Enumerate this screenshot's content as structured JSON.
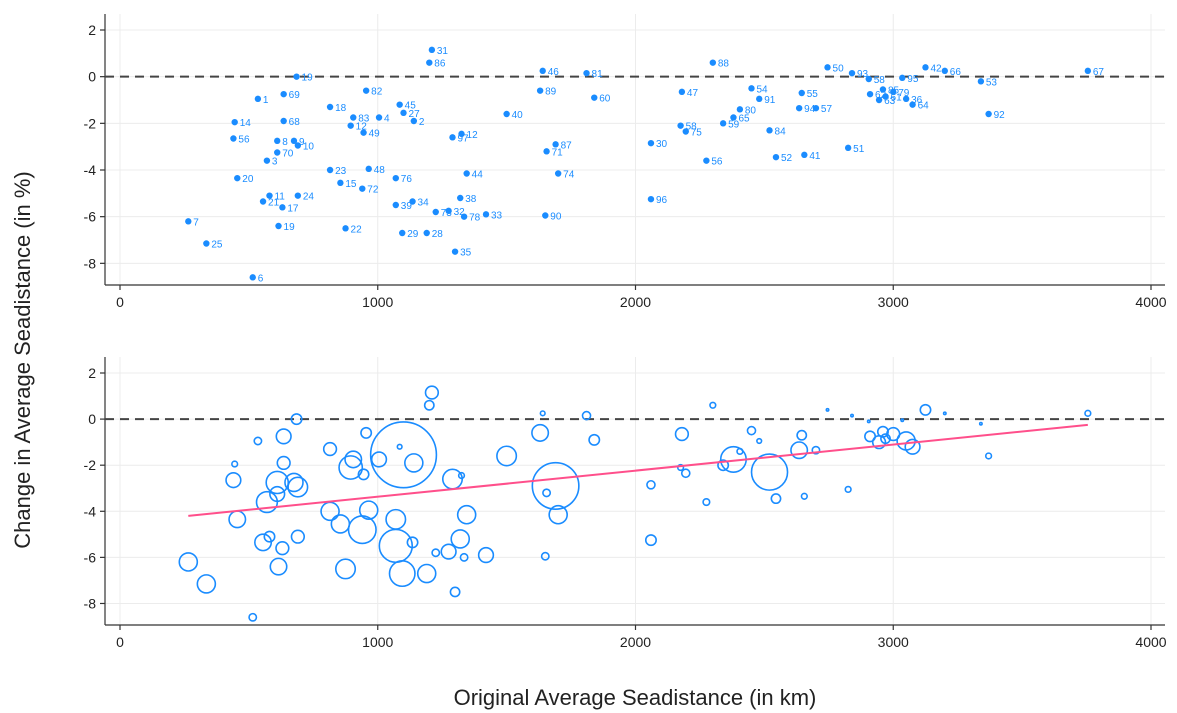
{
  "figure": {
    "ylabel": "Change in Average Seadistance (in %)",
    "xlabel": "Original Average Seadistance (in km)",
    "point_color": "#1a8cff",
    "fit_color": "#ff4f8b",
    "refline_color": "#444444"
  },
  "chart_data": [
    {
      "type": "scatter",
      "title": "",
      "xlim": [
        0,
        4000
      ],
      "ylim": [
        -8.5,
        2
      ],
      "xticks": [
        0,
        1000,
        2000,
        3000,
        4000
      ],
      "yticks": [
        2,
        0,
        -2,
        -4,
        -6,
        -8
      ],
      "reference_line_y": 0,
      "grid": true,
      "legend": "none",
      "points": [
        {
          "label": "7",
          "x": 265,
          "y": -6.2
        },
        {
          "label": "25",
          "x": 335,
          "y": -7.15
        },
        {
          "label": "6",
          "x": 515,
          "y": -8.6
        },
        {
          "label": "14",
          "x": 445,
          "y": -1.95
        },
        {
          "label": "56",
          "x": 440,
          "y": -2.65
        },
        {
          "label": "20",
          "x": 455,
          "y": -4.35
        },
        {
          "label": "1",
          "x": 535,
          "y": -0.95
        },
        {
          "label": "69",
          "x": 635,
          "y": -0.75
        },
        {
          "label": "19",
          "x": 685,
          "y": 0.0
        },
        {
          "label": "68",
          "x": 635,
          "y": -1.9
        },
        {
          "label": "8",
          "x": 610,
          "y": -2.75
        },
        {
          "label": "9",
          "x": 675,
          "y": -2.75
        },
        {
          "label": "10",
          "x": 690,
          "y": -2.95
        },
        {
          "label": "70",
          "x": 610,
          "y": -3.25
        },
        {
          "label": "3",
          "x": 570,
          "y": -3.6
        },
        {
          "label": "11",
          "x": 580,
          "y": -5.1
        },
        {
          "label": "21",
          "x": 555,
          "y": -5.35
        },
        {
          "label": "17",
          "x": 630,
          "y": -5.6
        },
        {
          "label": "24",
          "x": 690,
          "y": -5.1
        },
        {
          "label": "19",
          "x": 615,
          "y": -6.4
        },
        {
          "label": "18",
          "x": 815,
          "y": -1.3
        },
        {
          "label": "82",
          "x": 955,
          "y": -0.6
        },
        {
          "label": "83",
          "x": 905,
          "y": -1.75
        },
        {
          "label": "4",
          "x": 1005,
          "y": -1.75
        },
        {
          "label": "45",
          "x": 1085,
          "y": -1.2
        },
        {
          "label": "27",
          "x": 1100,
          "y": -1.55
        },
        {
          "label": "2",
          "x": 1140,
          "y": -1.9
        },
        {
          "label": "12",
          "x": 895,
          "y": -2.1
        },
        {
          "label": "49",
          "x": 945,
          "y": -2.4
        },
        {
          "label": "23",
          "x": 815,
          "y": -4.0
        },
        {
          "label": "48",
          "x": 965,
          "y": -3.95
        },
        {
          "label": "76",
          "x": 1070,
          "y": -4.35
        },
        {
          "label": "15",
          "x": 855,
          "y": -4.55
        },
        {
          "label": "72",
          "x": 940,
          "y": -4.8
        },
        {
          "label": "39",
          "x": 1070,
          "y": -5.5
        },
        {
          "label": "34",
          "x": 1135,
          "y": -5.35
        },
        {
          "label": "22",
          "x": 875,
          "y": -6.5
        },
        {
          "label": "29",
          "x": 1095,
          "y": -6.7
        },
        {
          "label": "28",
          "x": 1190,
          "y": -6.7
        },
        {
          "label": "31",
          "x": 1210,
          "y": 1.15
        },
        {
          "label": "86",
          "x": 1200,
          "y": 0.6
        },
        {
          "label": "97",
          "x": 1290,
          "y": -2.6
        },
        {
          "label": "12",
          "x": 1325,
          "y": -2.45
        },
        {
          "label": "44",
          "x": 1345,
          "y": -4.15
        },
        {
          "label": "38",
          "x": 1320,
          "y": -5.2
        },
        {
          "label": "32",
          "x": 1275,
          "y": -5.75
        },
        {
          "label": "73",
          "x": 1225,
          "y": -5.8
        },
        {
          "label": "78",
          "x": 1335,
          "y": -6.0
        },
        {
          "label": "33",
          "x": 1420,
          "y": -5.9
        },
        {
          "label": "35",
          "x": 1300,
          "y": -7.5
        },
        {
          "label": "40",
          "x": 1500,
          "y": -1.6
        },
        {
          "label": "46",
          "x": 1640,
          "y": 0.25
        },
        {
          "label": "89",
          "x": 1630,
          "y": -0.6
        },
        {
          "label": "81",
          "x": 1810,
          "y": 0.15
        },
        {
          "label": "60",
          "x": 1840,
          "y": -0.9
        },
        {
          "label": "87",
          "x": 1690,
          "y": -2.9
        },
        {
          "label": "71",
          "x": 1655,
          "y": -3.2
        },
        {
          "label": "74",
          "x": 1700,
          "y": -4.15
        },
        {
          "label": "90",
          "x": 1650,
          "y": -5.95
        },
        {
          "label": "30",
          "x": 2060,
          "y": -2.85
        },
        {
          "label": "96",
          "x": 2060,
          "y": -5.25
        },
        {
          "label": "47",
          "x": 2180,
          "y": -0.65
        },
        {
          "label": "58",
          "x": 2175,
          "y": -2.1
        },
        {
          "label": "75",
          "x": 2195,
          "y": -2.35
        },
        {
          "label": "56",
          "x": 2275,
          "y": -3.6
        },
        {
          "label": "88",
          "x": 2300,
          "y": 0.6
        },
        {
          "label": "54",
          "x": 2450,
          "y": -0.5
        },
        {
          "label": "91",
          "x": 2480,
          "y": -0.95
        },
        {
          "label": "80",
          "x": 2405,
          "y": -1.4
        },
        {
          "label": "65",
          "x": 2380,
          "y": -1.75
        },
        {
          "label": "59",
          "x": 2340,
          "y": -2.0
        },
        {
          "label": "84",
          "x": 2520,
          "y": -2.3
        },
        {
          "label": "52",
          "x": 2545,
          "y": -3.45
        },
        {
          "label": "41",
          "x": 2655,
          "y": -3.35
        },
        {
          "label": "50",
          "x": 2745,
          "y": 0.4
        },
        {
          "label": "55",
          "x": 2645,
          "y": -0.7
        },
        {
          "label": "94",
          "x": 2635,
          "y": -1.35
        },
        {
          "label": "57",
          "x": 2700,
          "y": -1.35
        },
        {
          "label": "51",
          "x": 2825,
          "y": -3.05
        },
        {
          "label": "93",
          "x": 2840,
          "y": 0.15
        },
        {
          "label": "58",
          "x": 2905,
          "y": -0.1
        },
        {
          "label": "95",
          "x": 3035,
          "y": -0.05
        },
        {
          "label": "85",
          "x": 2960,
          "y": -0.55
        },
        {
          "label": "62",
          "x": 2910,
          "y": -0.75
        },
        {
          "label": "61",
          "x": 2970,
          "y": -0.85
        },
        {
          "label": "79",
          "x": 3000,
          "y": -0.65
        },
        {
          "label": "63",
          "x": 2945,
          "y": -1.0
        },
        {
          "label": "36",
          "x": 3050,
          "y": -0.95
        },
        {
          "label": "64",
          "x": 3075,
          "y": -1.2
        },
        {
          "label": "42",
          "x": 3125,
          "y": 0.4
        },
        {
          "label": "66",
          "x": 3200,
          "y": 0.25
        },
        {
          "label": "53",
          "x": 3340,
          "y": -0.2
        },
        {
          "label": "92",
          "x": 3370,
          "y": -1.6
        },
        {
          "label": "67",
          "x": 3755,
          "y": 0.25
        }
      ]
    },
    {
      "type": "scatter",
      "title": "",
      "xlim": [
        0,
        4000
      ],
      "ylim": [
        -8.5,
        2
      ],
      "xticks": [
        0,
        1000,
        2000,
        3000,
        4000
      ],
      "yticks": [
        2,
        0,
        -2,
        -4,
        -6,
        -8
      ],
      "reference_line_y": 0,
      "grid": true,
      "legend": "none",
      "marker": "hollow circle sized by weight",
      "fit_line": {
        "x": [
          265,
          3755
        ],
        "y": [
          -4.2,
          -0.25
        ]
      },
      "points": [
        {
          "x": 265,
          "y": -6.2,
          "w": 3
        },
        {
          "x": 335,
          "y": -7.15,
          "w": 3
        },
        {
          "x": 515,
          "y": -8.6,
          "w": 0.5
        },
        {
          "x": 445,
          "y": -1.95,
          "w": 0.3
        },
        {
          "x": 440,
          "y": -2.65,
          "w": 2
        },
        {
          "x": 455,
          "y": -4.35,
          "w": 2.5
        },
        {
          "x": 535,
          "y": -0.95,
          "w": 0.5
        },
        {
          "x": 635,
          "y": -0.75,
          "w": 2
        },
        {
          "x": 685,
          "y": 0.0,
          "w": 1
        },
        {
          "x": 635,
          "y": -1.9,
          "w": 1.5
        },
        {
          "x": 610,
          "y": -2.75,
          "w": 4.5
        },
        {
          "x": 675,
          "y": -2.75,
          "w": 3
        },
        {
          "x": 690,
          "y": -2.95,
          "w": 3.5
        },
        {
          "x": 610,
          "y": -3.25,
          "w": 2
        },
        {
          "x": 570,
          "y": -3.6,
          "w": 4
        },
        {
          "x": 580,
          "y": -5.1,
          "w": 1
        },
        {
          "x": 555,
          "y": -5.35,
          "w": 2.5
        },
        {
          "x": 630,
          "y": -5.6,
          "w": 1.5
        },
        {
          "x": 690,
          "y": -5.1,
          "w": 1.5
        },
        {
          "x": 615,
          "y": -6.4,
          "w": 2.5
        },
        {
          "x": 815,
          "y": -1.3,
          "w": 1.5
        },
        {
          "x": 955,
          "y": -0.6,
          "w": 1
        },
        {
          "x": 905,
          "y": -1.75,
          "w": 2.5
        },
        {
          "x": 1005,
          "y": -1.75,
          "w": 2
        },
        {
          "x": 1085,
          "y": -1.2,
          "w": 0.2
        },
        {
          "x": 1100,
          "y": -1.55,
          "w": 40
        },
        {
          "x": 1140,
          "y": -1.9,
          "w": 3
        },
        {
          "x": 895,
          "y": -2.1,
          "w": 5
        },
        {
          "x": 945,
          "y": -2.4,
          "w": 1
        },
        {
          "x": 815,
          "y": -4.0,
          "w": 3
        },
        {
          "x": 965,
          "y": -3.95,
          "w": 3
        },
        {
          "x": 1070,
          "y": -4.35,
          "w": 3.5
        },
        {
          "x": 855,
          "y": -4.55,
          "w": 3
        },
        {
          "x": 940,
          "y": -4.8,
          "w": 7
        },
        {
          "x": 1070,
          "y": -5.5,
          "w": 10
        },
        {
          "x": 1135,
          "y": -5.35,
          "w": 1
        },
        {
          "x": 875,
          "y": -6.5,
          "w": 3.5
        },
        {
          "x": 1095,
          "y": -6.7,
          "w": 6
        },
        {
          "x": 1190,
          "y": -6.7,
          "w": 3
        },
        {
          "x": 1210,
          "y": 1.15,
          "w": 1.5
        },
        {
          "x": 1200,
          "y": 0.6,
          "w": 0.8
        },
        {
          "x": 1290,
          "y": -2.6,
          "w": 3.5
        },
        {
          "x": 1325,
          "y": -2.45,
          "w": 0.3
        },
        {
          "x": 1345,
          "y": -4.15,
          "w": 3
        },
        {
          "x": 1320,
          "y": -5.2,
          "w": 3
        },
        {
          "x": 1275,
          "y": -5.75,
          "w": 2
        },
        {
          "x": 1225,
          "y": -5.8,
          "w": 0.5
        },
        {
          "x": 1335,
          "y": -6.0,
          "w": 0.5
        },
        {
          "x": 1420,
          "y": -5.9,
          "w": 2
        },
        {
          "x": 1300,
          "y": -7.5,
          "w": 0.8
        },
        {
          "x": 1500,
          "y": -1.6,
          "w": 3.5
        },
        {
          "x": 1640,
          "y": 0.25,
          "w": 0.2
        },
        {
          "x": 1630,
          "y": -0.6,
          "w": 2.5
        },
        {
          "x": 1810,
          "y": 0.15,
          "w": 0.6
        },
        {
          "x": 1840,
          "y": -0.9,
          "w": 1
        },
        {
          "x": 1690,
          "y": -2.9,
          "w": 20
        },
        {
          "x": 1655,
          "y": -3.2,
          "w": 0.5
        },
        {
          "x": 1700,
          "y": -4.15,
          "w": 3
        },
        {
          "x": 1650,
          "y": -5.95,
          "w": 0.5
        },
        {
          "x": 2060,
          "y": -2.85,
          "w": 0.6
        },
        {
          "x": 2060,
          "y": -5.25,
          "w": 1
        },
        {
          "x": 2180,
          "y": -0.65,
          "w": 1.5
        },
        {
          "x": 2175,
          "y": -2.1,
          "w": 0.3
        },
        {
          "x": 2195,
          "y": -2.35,
          "w": 0.6
        },
        {
          "x": 2275,
          "y": -3.6,
          "w": 0.4
        },
        {
          "x": 2300,
          "y": 0.6,
          "w": 0.3
        },
        {
          "x": 2450,
          "y": -0.5,
          "w": 0.6
        },
        {
          "x": 2480,
          "y": -0.95,
          "w": 0.2
        },
        {
          "x": 2405,
          "y": -1.4,
          "w": 0.3
        },
        {
          "x": 2380,
          "y": -1.75,
          "w": 6
        },
        {
          "x": 2340,
          "y": -2.0,
          "w": 1
        },
        {
          "x": 2520,
          "y": -2.3,
          "w": 12
        },
        {
          "x": 2545,
          "y": -3.45,
          "w": 0.8
        },
        {
          "x": 2655,
          "y": -3.35,
          "w": 0.3
        },
        {
          "x": 2745,
          "y": 0.4,
          "w": 0.05
        },
        {
          "x": 2645,
          "y": -0.7,
          "w": 0.8
        },
        {
          "x": 2635,
          "y": -1.35,
          "w": 2.5
        },
        {
          "x": 2700,
          "y": -1.35,
          "w": 0.5
        },
        {
          "x": 2825,
          "y": -3.05,
          "w": 0.3
        },
        {
          "x": 2840,
          "y": 0.15,
          "w": 0.05
        },
        {
          "x": 2905,
          "y": -0.1,
          "w": 0.05
        },
        {
          "x": 3035,
          "y": -0.05,
          "w": 0.05
        },
        {
          "x": 2960,
          "y": -0.55,
          "w": 1
        },
        {
          "x": 2910,
          "y": -0.75,
          "w": 1
        },
        {
          "x": 2970,
          "y": -0.85,
          "w": 0.8
        },
        {
          "x": 3000,
          "y": -0.65,
          "w": 1.5
        },
        {
          "x": 2945,
          "y": -1.0,
          "w": 1.5
        },
        {
          "x": 3050,
          "y": -0.95,
          "w": 3
        },
        {
          "x": 3075,
          "y": -1.2,
          "w": 2
        },
        {
          "x": 3125,
          "y": 0.4,
          "w": 1
        },
        {
          "x": 3200,
          "y": 0.25,
          "w": 0.05
        },
        {
          "x": 3340,
          "y": -0.2,
          "w": 0.05
        },
        {
          "x": 3370,
          "y": -1.6,
          "w": 0.3
        },
        {
          "x": 3755,
          "y": 0.25,
          "w": 0.3
        }
      ]
    }
  ]
}
